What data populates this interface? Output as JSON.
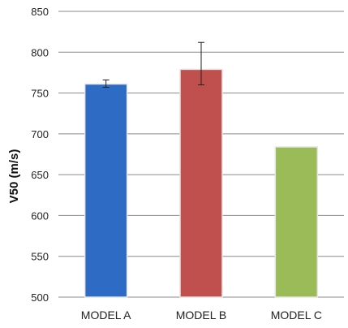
{
  "chart_data": {
    "type": "bar",
    "title": "",
    "xlabel": "",
    "ylabel": "V50 (m/s)",
    "ylim": [
      500,
      850
    ],
    "yticks": [
      500,
      550,
      600,
      650,
      700,
      750,
      800,
      850
    ],
    "grid": true,
    "legend": "none",
    "categories": [
      "MODEL A",
      "MODEL B",
      "MODEL C"
    ],
    "values": [
      761,
      779,
      684
    ],
    "error_upper": [
      766,
      812,
      null
    ],
    "error_lower": [
      757,
      760,
      null
    ],
    "colors": [
      "#2E6BC4",
      "#C0504D",
      "#9BBB59"
    ]
  }
}
